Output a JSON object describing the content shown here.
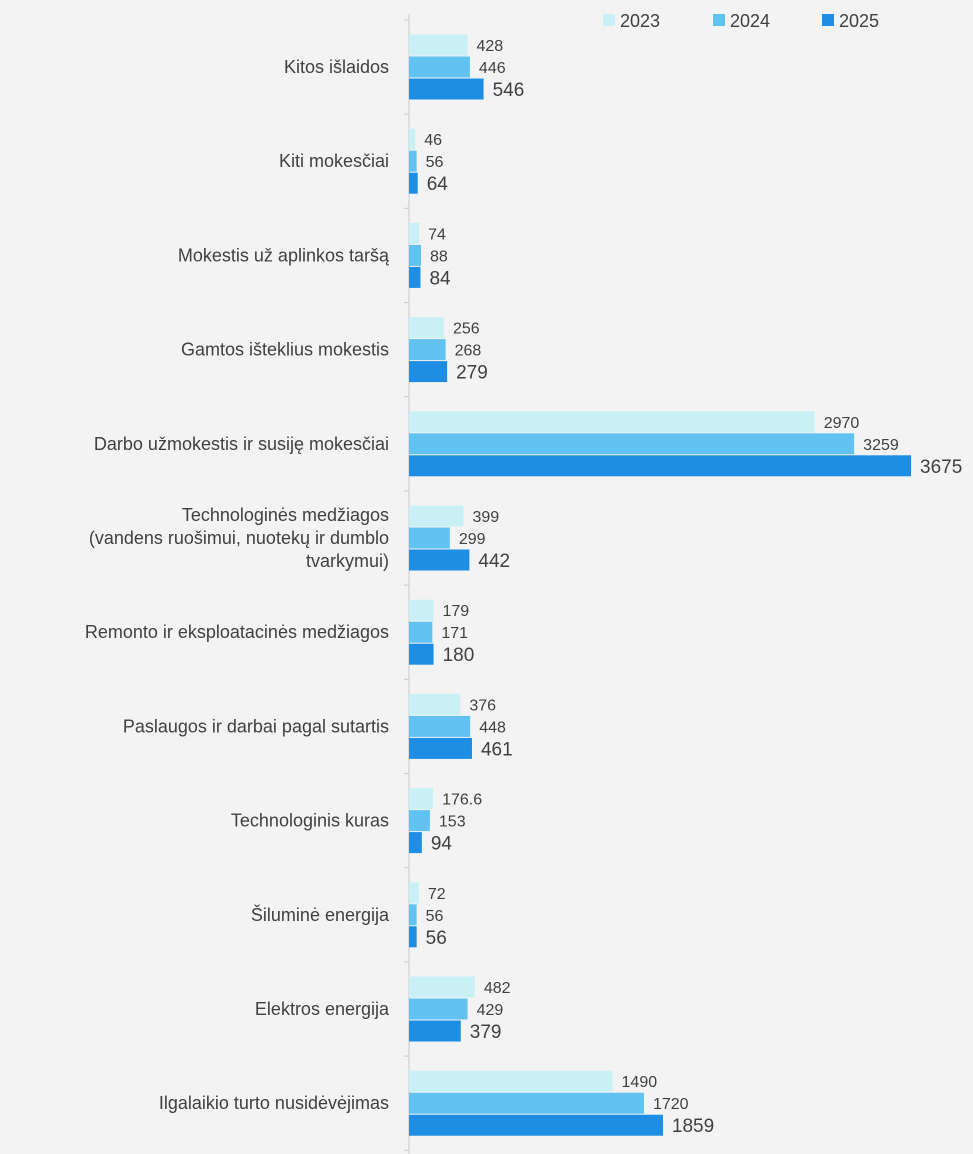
{
  "chart_data": {
    "type": "bar",
    "orientation": "horizontal",
    "categories": [
      "Kitos išlaidos",
      "Kiti mokesčiai",
      "Mokestis už aplinkos taršą",
      "Gamtos išteklius mokestis",
      "Darbo užmokestis ir susiję mokesčiai",
      "Technologinės medžiagos (vandens ruošimui, nuotekų ir dumblo tvarkymui)",
      "Remonto ir eksploatacinės medžiagos",
      "Paslaugos ir darbai pagal sutartis",
      "Technologinis kuras",
      "Šiluminė energija",
      "Elektros energija",
      "Ilgalaikio turto nusidėvėjimas"
    ],
    "category_lines": [
      [
        "Kitos išlaidos"
      ],
      [
        "Kiti mokesčiai"
      ],
      [
        "Mokestis už aplinkos taršą"
      ],
      [
        "Gamtos išteklius mokestis"
      ],
      [
        "Darbo užmokestis ir susiję mokesčiai"
      ],
      [
        "Technologinės medžiagos",
        "(vandens ruošimui, nuotekų ir dumblo",
        "tvarkymui)"
      ],
      [
        "Remonto ir eksploatacinės medžiagos"
      ],
      [
        "Paslaugos ir darbai pagal sutartis"
      ],
      [
        "Technologinis kuras"
      ],
      [
        "Šiluminė energija"
      ],
      [
        "Elektros energija"
      ],
      [
        "Ilgalaikio turto nusidėvėjimas"
      ]
    ],
    "series": [
      {
        "name": "2023",
        "color": "#c9f1f5",
        "values": [
          428,
          46,
          74,
          256,
          2970,
          399,
          179,
          376,
          176.6,
          72,
          482,
          1490
        ],
        "labels": [
          "428",
          "46",
          "74",
          "256",
          "2970",
          "399",
          "179",
          "376",
          "176.6",
          "72",
          "482",
          "1490"
        ]
      },
      {
        "name": "2024",
        "color": "#62c3f2",
        "values": [
          446,
          56,
          88,
          268,
          3259,
          299,
          171,
          448,
          153,
          56,
          429,
          1720
        ],
        "labels": [
          "446",
          "56",
          "88",
          "268",
          "3259",
          "299",
          "171",
          "448",
          "153",
          "56",
          "429",
          "1720"
        ]
      },
      {
        "name": "2025",
        "color": "#1d8ee3",
        "values": [
          546,
          64,
          84,
          279,
          3675,
          442,
          180,
          461,
          94,
          56,
          379,
          1859
        ],
        "labels": [
          "546",
          "64",
          "84",
          "279",
          "3675",
          "442",
          "180",
          "461",
          "94",
          "56",
          "379",
          "1859"
        ]
      }
    ],
    "xlim": [
      0,
      3675
    ],
    "legend_position": "top-right",
    "grid": false,
    "title": "",
    "xlabel": "",
    "ylabel": ""
  }
}
